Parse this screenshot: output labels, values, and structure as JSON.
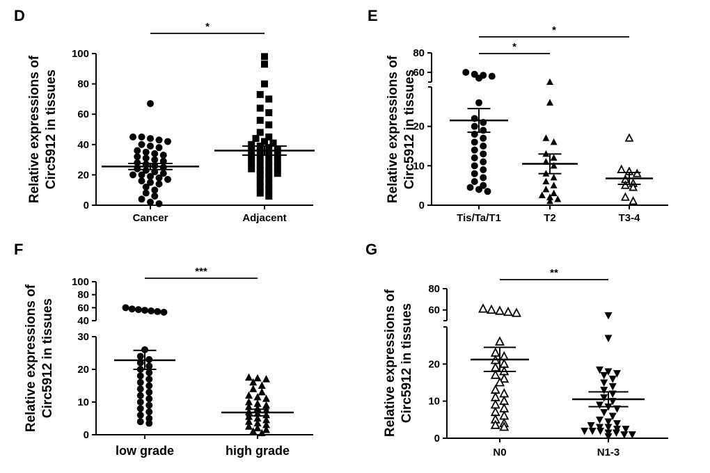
{
  "chart_data": [
    {
      "panel": "D",
      "type": "scatter",
      "ylabel": [
        "Relative expressions of",
        "Circ5912 in tissues"
      ],
      "categories": [
        "Cancer",
        "Adjacent"
      ],
      "yticks": [
        0,
        20,
        40,
        60,
        80,
        100
      ],
      "ylim": [
        0,
        100
      ],
      "series": [
        {
          "marker": "circle-filled",
          "values": [
            67,
            45,
            45,
            44,
            43,
            42,
            40,
            39,
            38,
            36,
            35,
            34,
            33,
            32,
            31,
            30,
            29,
            28,
            27,
            26,
            25,
            24,
            23,
            22,
            21,
            20,
            20,
            19,
            18,
            17,
            16,
            15,
            14,
            12,
            10,
            8,
            6,
            4,
            2,
            1
          ]
        },
        {
          "marker": "square-filled",
          "values": [
            98,
            93,
            80,
            73,
            70,
            64,
            61,
            56,
            53,
            48,
            45,
            44,
            42,
            41,
            40,
            39,
            38,
            37,
            36,
            35,
            34,
            33,
            32,
            31,
            30,
            29,
            28,
            27,
            26,
            25,
            24,
            23,
            22,
            21,
            20,
            18,
            16,
            14,
            12,
            10,
            8,
            6
          ]
        }
      ],
      "means": [
        25.5,
        36
      ],
      "sem": [
        [
          23.5,
          27.5
        ],
        [
          33,
          39
        ]
      ],
      "significance": [
        {
          "from": 0,
          "to": 1,
          "label": "*"
        }
      ]
    },
    {
      "panel": "E",
      "type": "scatter",
      "ylabel": [
        "Relative expressions of",
        "Circ5912 in tissues"
      ],
      "categories": [
        "Tis/Ta/T1",
        "T2",
        "T3-4"
      ],
      "yticks": [
        0,
        10,
        20,
        60,
        80
      ],
      "ylim": [
        0,
        80
      ],
      "axis_break": [
        30,
        50
      ],
      "series": [
        {
          "marker": "circle-filled",
          "values": [
            60,
            58,
            57,
            56,
            54,
            26,
            22,
            21,
            20,
            19,
            18,
            17,
            16,
            15,
            14,
            13,
            12,
            11,
            10,
            9,
            8,
            7,
            6,
            5,
            4.5,
            4,
            3.5
          ]
        },
        {
          "marker": "triangle-filled",
          "values": [
            50,
            26,
            17,
            16,
            13,
            12,
            11,
            10,
            8,
            7,
            6,
            5,
            4,
            3,
            2.5,
            2,
            1.5,
            1
          ]
        },
        {
          "marker": "triangle-open",
          "values": [
            17,
            9,
            8.5,
            8,
            6.5,
            5.5,
            5,
            4.5,
            2,
            1
          ]
        }
      ],
      "means": [
        21.5,
        10.5,
        6.8
      ],
      "sem": [
        [
          18.5,
          24.5
        ],
        [
          8,
          13
        ],
        [
          5.3,
          8.3
        ]
      ],
      "significance": [
        {
          "from": 0,
          "to": 1,
          "label": "*"
        },
        {
          "from": 0,
          "to": 2,
          "label": "*"
        }
      ]
    },
    {
      "panel": "F",
      "type": "scatter",
      "ylabel": [
        "Relative expressions of",
        "Circ5912 in tissues"
      ],
      "categories": [
        "low grade",
        "high grade"
      ],
      "yticks": [
        0,
        10,
        20,
        30,
        40,
        60,
        80,
        100
      ],
      "ylim": [
        0,
        100
      ],
      "axis_break": [
        30,
        40
      ],
      "series": [
        {
          "marker": "circle-filled",
          "values": [
            60,
            58,
            57,
            56,
            55,
            54,
            53,
            26,
            24,
            23,
            22,
            21,
            20,
            19,
            18,
            17,
            16,
            15,
            14,
            13,
            12,
            11,
            10,
            9,
            8,
            7,
            6,
            5,
            4,
            3.5
          ]
        },
        {
          "marker": "triangle-filled",
          "values": [
            17.5,
            17.3,
            17,
            16,
            15,
            14,
            13,
            12,
            11.5,
            11,
            10,
            9.5,
            9,
            8.5,
            8,
            7.5,
            7,
            6.5,
            6,
            5.5,
            5,
            4.5,
            4,
            3.5,
            3,
            2.5,
            2,
            1.5,
            1,
            0.5
          ]
        }
      ],
      "means": [
        22.8,
        6.8
      ],
      "sem": [
        [
          20,
          25.8
        ],
        [
          5.8,
          7.8
        ]
      ],
      "significance": [
        {
          "from": 0,
          "to": 1,
          "label": "***"
        }
      ]
    },
    {
      "panel": "G",
      "type": "scatter",
      "ylabel": [
        "Relative expressions of",
        "Circ5912 in tissues"
      ],
      "categories": [
        "N0",
        "N1-3"
      ],
      "yticks": [
        0,
        10,
        20,
        60,
        80
      ],
      "ylim": [
        0,
        80
      ],
      "axis_break": [
        30,
        50
      ],
      "series": [
        {
          "marker": "triangle-open",
          "values": [
            61,
            60,
            59,
            58,
            57,
            26,
            23,
            22,
            21,
            20,
            19,
            18,
            17,
            16,
            15,
            13,
            12,
            11,
            10,
            9,
            8,
            7,
            6,
            5,
            4,
            3.5,
            3
          ]
        },
        {
          "marker": "triangle-down-filled",
          "values": [
            55,
            27,
            18.5,
            18,
            17.5,
            17,
            16,
            15,
            14,
            13,
            12,
            11,
            10,
            9,
            8.5,
            8,
            7,
            6,
            5,
            4.5,
            4,
            3.5,
            3,
            2.5,
            2,
            1.5,
            1,
            0.5,
            2,
            1,
            2.5,
            1.5,
            3,
            2
          ]
        }
      ],
      "means": [
        21.2,
        10.5
      ],
      "sem": [
        [
          18,
          24.5
        ],
        [
          8.5,
          12.5
        ]
      ],
      "significance": [
        {
          "from": 0,
          "to": 1,
          "label": "**"
        }
      ]
    }
  ]
}
